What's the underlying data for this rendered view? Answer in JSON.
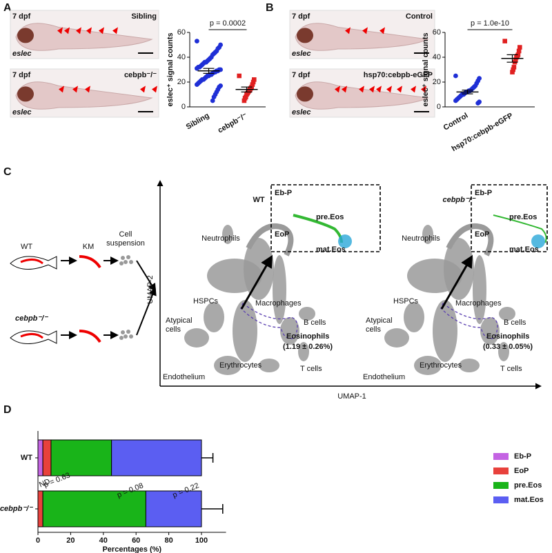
{
  "panels": [
    {
      "letter": "A",
      "images": [
        {
          "age": "7 dpf",
          "label": "Sibling",
          "stain": "eslec"
        },
        {
          "age": "7 dpf",
          "label": "cebpb⁻/⁻",
          "stain": "eslec"
        }
      ]
    },
    {
      "letter": "B",
      "images": [
        {
          "age": "7 dpf",
          "label": "Control",
          "stain": "eslec"
        },
        {
          "age": "7 dpf",
          "label": "hsp70:cebpb-eGFP",
          "stain": "eslec"
        }
      ]
    },
    {
      "letter": "C"
    },
    {
      "letter": "D"
    }
  ],
  "schematic": {
    "wt": "WT",
    "mutant": "cebpb⁻/⁻",
    "organ": "KM",
    "suspension": [
      "Cell",
      "suspension"
    ]
  },
  "umap": {
    "ylabel": "UMAP-2",
    "xlabel": "UMAP-1",
    "plots": [
      {
        "title": "WT",
        "stat": "(1.19 ± 0.26%)"
      },
      {
        "title": "cebpb⁻/⁻",
        "stat": "(0.33 ± 0.05%)"
      }
    ],
    "clusters": {
      "neutrophils": "Neutrophils",
      "hspcs": "HSPCs",
      "atypical": [
        "Atypical",
        "cells"
      ],
      "macrophages": "Macrophages",
      "bcells": "B cells",
      "eosinophils": "Eosinophils",
      "erythrocytes": "Erythrocytes",
      "tcells": "T cells",
      "endothelium": "Endothelium"
    },
    "inset": {
      "ebp": "Eb-P",
      "eop": "EoP",
      "pre": "pre.Eos",
      "mat": "mat.Eos"
    }
  },
  "chart_data": [
    {
      "type": "dot",
      "ylabel": "eslec⁺ signal counts",
      "ylim": [
        0,
        60
      ],
      "yticks": [
        0,
        20,
        40,
        60
      ],
      "annotation": "p = 0.0002",
      "groups": [
        {
          "name": "Sibling",
          "color": "#1f2fd6",
          "marker": "circle",
          "mean": 29,
          "sem": 2,
          "values": [
            53,
            50,
            48,
            47,
            45,
            44,
            43,
            42,
            40,
            39,
            38,
            37,
            36,
            36,
            35,
            34,
            33,
            32,
            32,
            31,
            30,
            30,
            29,
            29,
            28,
            28,
            27,
            26,
            26,
            25,
            25,
            24,
            23,
            22,
            22,
            21,
            20,
            19,
            18,
            17,
            16,
            14,
            12,
            10,
            8,
            5
          ]
        },
        {
          "name": "cebpb⁻/⁻",
          "color": "#e02020",
          "marker": "square",
          "mean": 14,
          "sem": 2,
          "values": [
            25,
            22,
            20,
            18,
            16,
            15,
            14,
            13,
            12,
            11,
            10,
            8,
            7,
            5
          ]
        }
      ]
    },
    {
      "type": "dot",
      "ylabel": "eslec⁺ signal counts",
      "ylim": [
        0,
        60
      ],
      "yticks": [
        0,
        20,
        40,
        60
      ],
      "annotation": "p = 1.0e-10",
      "groups": [
        {
          "name": "Control",
          "color": "#1f2fd6",
          "marker": "circle",
          "mean": 12,
          "sem": 1.5,
          "values": [
            25,
            23,
            21,
            19,
            17,
            16,
            15,
            14,
            13,
            13,
            12,
            12,
            11,
            10,
            10,
            9,
            8,
            7,
            6,
            5,
            4,
            3
          ]
        },
        {
          "name": "hsp70:cebpb-eGFP",
          "color": "#e02020",
          "marker": "square",
          "mean": 39,
          "sem": 3,
          "values": [
            53,
            48,
            45,
            42,
            41,
            40,
            38,
            36,
            32,
            30,
            28
          ]
        }
      ]
    },
    {
      "type": "stacked-barh",
      "categories": [
        "WT",
        "cebpb⁻/⁻"
      ],
      "xlim": [
        0,
        115
      ],
      "xticks": [
        0,
        20,
        40,
        60,
        80,
        100
      ],
      "xlabel": "Percentages (%)",
      "series": [
        {
          "name": "Eb-P",
          "color": "#c463e3",
          "values": [
            3,
            null
          ],
          "errors": [
            1,
            null
          ]
        },
        {
          "name": "EoP",
          "color": "#e8413c",
          "values": [
            5,
            3
          ],
          "errors": [
            1.5,
            2
          ]
        },
        {
          "name": "pre.Eos",
          "color": "#19b419",
          "values": [
            37,
            63
          ],
          "errors": [
            6,
            10
          ]
        },
        {
          "name": "mat.Eos",
          "color": "#5b5ef2",
          "values": [
            55,
            34
          ],
          "errors": [
            7,
            13
          ]
        }
      ],
      "annotations": [
        {
          "series": 0,
          "text": "ND"
        },
        {
          "series": 1,
          "text": "p = 0.63"
        },
        {
          "series": 2,
          "text": "p = 0.08"
        },
        {
          "series": 3,
          "text": "p = 0.22"
        }
      ]
    }
  ]
}
